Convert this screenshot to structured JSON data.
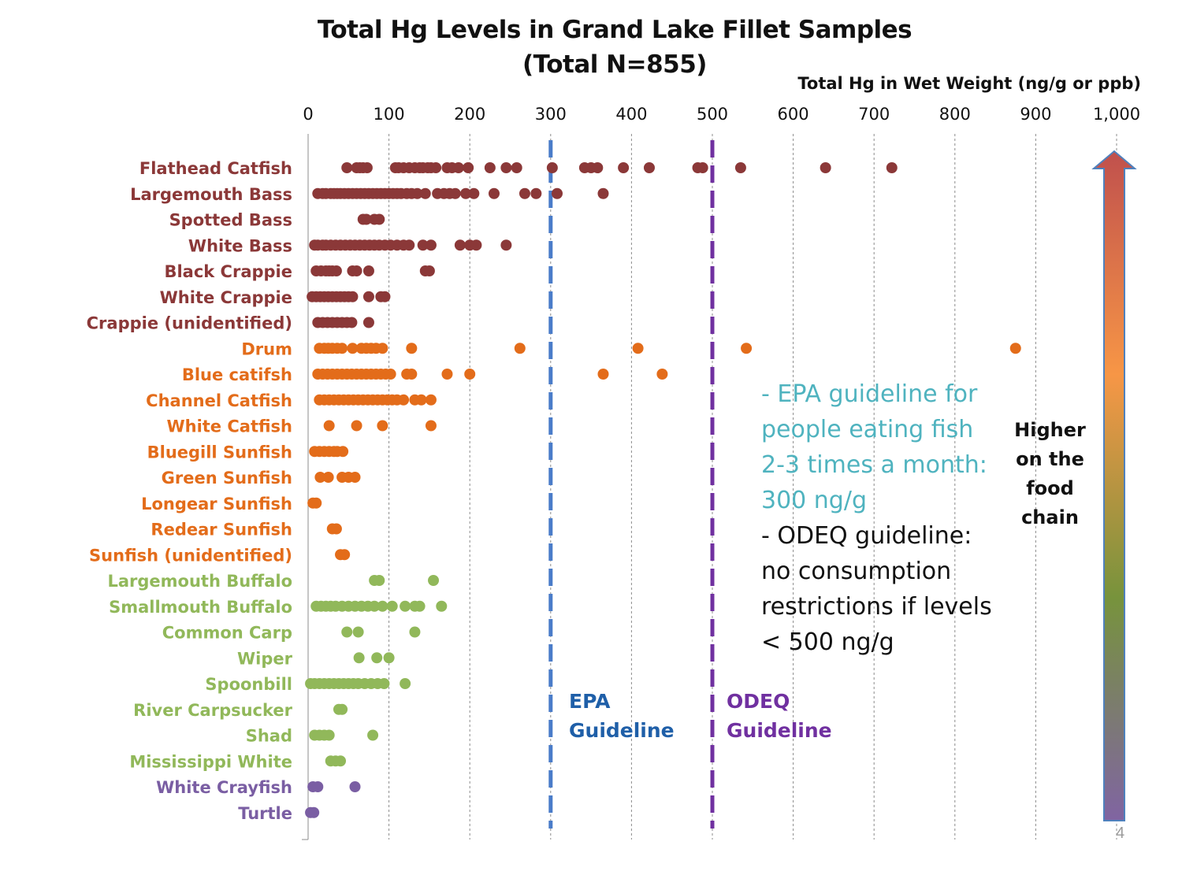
{
  "title_line1": "Total Hg Levels in Grand Lake Fillet Samples",
  "title_line2": "(Total N=855)",
  "page_number": "4",
  "notes": {
    "epa_text": "- EPA guideline for people eating fish 2-3 times a month: 300 ng/g",
    "odeq_text": "- ODEQ guideline: no consumption restrictions if levels < 500 ng/g",
    "food_chain": "Higher on the food chain"
  },
  "guides": [
    {
      "value": 300,
      "label_line1": "EPA",
      "label_line2": "Guideline",
      "color": "#4a7cc9",
      "label_color": "#1f5fa8"
    },
    {
      "value": 500,
      "label_line1": "ODEQ",
      "label_line2": "Guideline",
      "color": "#7030a0",
      "label_color": "#7030a0"
    }
  ],
  "colors": {
    "top_predator": "#8b3838",
    "mid": "#e36c1a",
    "low": "#91b85a",
    "invert": "#7a5ea3",
    "arrow_gradient": [
      "#c0504d",
      "#f79646",
      "#77933c",
      "#8064a2"
    ]
  },
  "chart_data": {
    "type": "scatter",
    "title": "Total Hg Levels in Grand Lake Fillet Samples (Total N=855)",
    "xlabel": "Total Hg in Wet Weight (ng/g or ppb)",
    "ylabel": "",
    "xlim": [
      0,
      1000
    ],
    "x_ticks": [
      0,
      100,
      200,
      300,
      400,
      500,
      600,
      700,
      800,
      900,
      1000
    ],
    "x_tick_labels": [
      "0",
      "100",
      "200",
      "300",
      "400",
      "500",
      "600",
      "700",
      "800",
      "900",
      "1,000"
    ],
    "x_axis_position": "top",
    "grid": "vertical dashed",
    "series": [
      {
        "name": "Flathead Catfish",
        "color": "#8b3838",
        "values": [
          48,
          60,
          64,
          68,
          73,
          108,
          112,
          118,
          125,
          132,
          138,
          142,
          148,
          152,
          158,
          172,
          178,
          186,
          198,
          225,
          245,
          258,
          302,
          342,
          350,
          358,
          390,
          422,
          482,
          488,
          535,
          640,
          722
        ]
      },
      {
        "name": "Largemouth Bass",
        "color": "#8b3838",
        "values": [
          12,
          18,
          22,
          28,
          32,
          36,
          40,
          45,
          50,
          55,
          60,
          65,
          70,
          75,
          80,
          85,
          90,
          95,
          100,
          105,
          110,
          115,
          122,
          128,
          135,
          145,
          160,
          168,
          175,
          182,
          195,
          205,
          230,
          268,
          282,
          308,
          365
        ]
      },
      {
        "name": "Spotted Bass",
        "color": "#8b3838",
        "values": [
          68,
          72,
          82,
          88
        ]
      },
      {
        "name": "White Bass",
        "color": "#8b3838",
        "values": [
          8,
          12,
          18,
          22,
          28,
          34,
          40,
          46,
          52,
          58,
          64,
          70,
          76,
          82,
          88,
          95,
          102,
          110,
          118,
          125,
          142,
          152,
          188,
          200,
          208,
          245
        ]
      },
      {
        "name": "Black Crappie",
        "color": "#8b3838",
        "values": [
          10,
          16,
          22,
          26,
          30,
          35,
          55,
          60,
          75,
          145,
          150
        ]
      },
      {
        "name": "White Crappie",
        "color": "#8b3838",
        "values": [
          5,
          10,
          15,
          20,
          25,
          30,
          35,
          40,
          45,
          50,
          55,
          75,
          90,
          95
        ]
      },
      {
        "name": "Crappie (unidentified)",
        "color": "#8b3838",
        "values": [
          12,
          18,
          24,
          30,
          36,
          42,
          48,
          54,
          75
        ]
      },
      {
        "name": "Drum",
        "color": "#e36c1a",
        "values": [
          14,
          20,
          25,
          30,
          36,
          42,
          55,
          66,
          72,
          78,
          84,
          92,
          128,
          262,
          408,
          542,
          875
        ]
      },
      {
        "name": "Blue catifsh",
        "color": "#e36c1a",
        "values": [
          12,
          18,
          24,
          30,
          36,
          42,
          48,
          54,
          60,
          66,
          72,
          78,
          84,
          90,
          96,
          102,
          122,
          128,
          172,
          200,
          365,
          438
        ]
      },
      {
        "name": "Channel Catfish",
        "color": "#e36c1a",
        "values": [
          14,
          20,
          26,
          32,
          38,
          44,
          50,
          56,
          62,
          68,
          74,
          80,
          86,
          92,
          98,
          104,
          110,
          118,
          132,
          140,
          152
        ]
      },
      {
        "name": "White Catfish",
        "color": "#e36c1a",
        "values": [
          26,
          60,
          92,
          152
        ]
      },
      {
        "name": "Bluegill Sunfish",
        "color": "#e36c1a",
        "values": [
          8,
          14,
          20,
          26,
          32,
          36,
          43
        ]
      },
      {
        "name": "Green Sunfish",
        "color": "#e36c1a",
        "values": [
          15,
          25,
          42,
          50,
          58
        ]
      },
      {
        "name": "Longear Sunfish",
        "color": "#e36c1a",
        "values": [
          6,
          10
        ]
      },
      {
        "name": "Redear Sunfish",
        "color": "#e36c1a",
        "values": [
          30,
          35
        ]
      },
      {
        "name": "Sunfish (unidentified)",
        "color": "#e36c1a",
        "values": [
          40,
          45
        ]
      },
      {
        "name": "Largemouth Buffalo",
        "color": "#91b85a",
        "values": [
          82,
          88,
          155
        ]
      },
      {
        "name": "Smallmouth Buffalo",
        "color": "#91b85a",
        "values": [
          10,
          16,
          22,
          28,
          34,
          42,
          50,
          58,
          66,
          74,
          82,
          92,
          104,
          120,
          132,
          138,
          165
        ]
      },
      {
        "name": "Common Carp",
        "color": "#91b85a",
        "values": [
          48,
          62,
          132
        ]
      },
      {
        "name": "Wiper",
        "color": "#91b85a",
        "values": [
          63,
          85,
          100
        ]
      },
      {
        "name": "Spoonbill",
        "color": "#91b85a",
        "values": [
          3,
          8,
          14,
          20,
          26,
          32,
          38,
          44,
          50,
          56,
          62,
          70,
          78,
          86,
          94,
          120
        ]
      },
      {
        "name": "River Carpsucker",
        "color": "#91b85a",
        "values": [
          38,
          42
        ]
      },
      {
        "name": "Shad",
        "color": "#91b85a",
        "values": [
          8,
          14,
          20,
          26,
          80
        ]
      },
      {
        "name": "Mississippi White",
        "color": "#91b85a",
        "values": [
          28,
          34,
          40
        ]
      },
      {
        "name": "White Crayfish",
        "color": "#7a5ea3",
        "values": [
          6,
          12,
          58
        ]
      },
      {
        "name": "Turtle",
        "color": "#7a5ea3",
        "values": [
          3,
          7
        ]
      }
    ]
  }
}
